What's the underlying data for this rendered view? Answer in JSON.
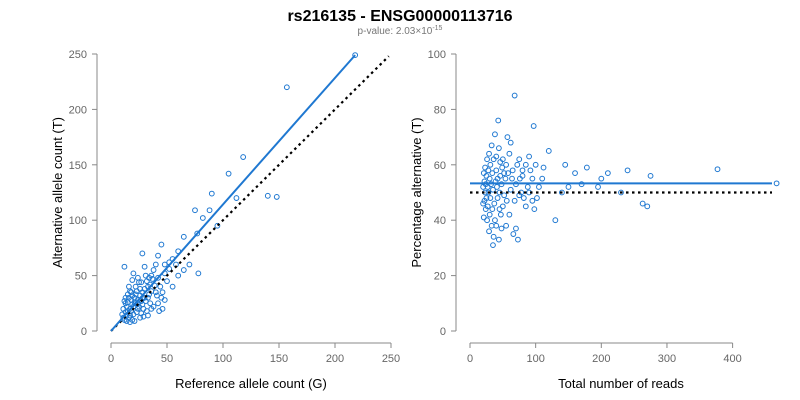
{
  "figure": {
    "title": "rs216135 - ENSG00000113716",
    "subtitle_prefix": "p-value: 2.03×10",
    "subtitle_exponent": "-15"
  },
  "colors": {
    "points": "#1f78d1",
    "fit_line": "#1f78d1",
    "reference_line": "#000000",
    "axis": "#888888",
    "tick_text": "#666666"
  },
  "chart_data": [
    {
      "type": "scatter",
      "xlabel": "Reference allele count (G)",
      "ylabel": "Alternative allele count (T)",
      "xlim": [
        0,
        250
      ],
      "ylim": [
        0,
        250
      ],
      "xticks": [
        0,
        50,
        100,
        150,
        200,
        250
      ],
      "yticks": [
        0,
        50,
        100,
        150,
        200,
        250
      ],
      "grid": false,
      "fit_line": [
        [
          0,
          0
        ],
        [
          218,
          249
        ]
      ],
      "reference_line": [
        [
          0,
          0
        ],
        [
          248,
          248
        ]
      ],
      "points": [
        [
          218,
          249
        ],
        [
          157,
          220
        ],
        [
          118,
          157
        ],
        [
          105,
          142
        ],
        [
          140,
          122
        ],
        [
          148,
          121
        ],
        [
          112,
          120
        ],
        [
          90,
          124
        ],
        [
          75,
          109
        ],
        [
          88,
          109
        ],
        [
          95,
          95
        ],
        [
          82,
          102
        ],
        [
          77,
          88
        ],
        [
          65,
          85
        ],
        [
          78,
          52
        ],
        [
          60,
          72
        ],
        [
          55,
          65
        ],
        [
          58,
          60
        ],
        [
          52,
          56
        ],
        [
          48,
          60
        ],
        [
          45,
          78
        ],
        [
          42,
          68
        ],
        [
          40,
          60
        ],
        [
          48,
          52
        ],
        [
          50,
          45
        ],
        [
          42,
          48
        ],
        [
          38,
          55
        ],
        [
          36,
          50
        ],
        [
          33,
          40
        ],
        [
          28,
          70
        ],
        [
          30,
          58
        ],
        [
          35,
          42
        ],
        [
          40,
          35
        ],
        [
          45,
          30
        ],
        [
          42,
          25
        ],
        [
          38,
          22
        ],
        [
          30,
          30
        ],
        [
          25,
          44
        ],
        [
          20,
          52
        ],
        [
          12,
          58
        ],
        [
          17,
          36
        ],
        [
          22,
          33
        ],
        [
          27,
          27
        ],
        [
          24,
          20
        ],
        [
          32,
          18
        ],
        [
          35,
          25
        ],
        [
          26,
          12
        ],
        [
          19,
          10
        ],
        [
          14,
          14
        ],
        [
          11,
          20
        ],
        [
          15,
          26
        ],
        [
          13,
          30
        ],
        [
          10,
          15
        ],
        [
          12,
          10
        ],
        [
          16,
          12
        ],
        [
          18,
          18
        ],
        [
          20,
          22
        ],
        [
          22,
          25
        ],
        [
          24,
          28
        ],
        [
          26,
          32
        ],
        [
          28,
          35
        ],
        [
          30,
          38
        ],
        [
          32,
          45
        ],
        [
          34,
          48
        ],
        [
          16,
          30
        ],
        [
          18,
          28
        ],
        [
          14,
          22
        ],
        [
          20,
          15
        ],
        [
          23,
          17
        ],
        [
          25,
          22
        ],
        [
          28,
          24
        ],
        [
          31,
          27
        ],
        [
          33,
          30
        ],
        [
          29,
          20
        ],
        [
          21,
          30
        ],
        [
          19,
          24
        ],
        [
          17,
          20
        ],
        [
          13,
          17
        ],
        [
          15,
          18
        ],
        [
          22,
          40
        ],
        [
          27,
          44
        ],
        [
          31,
          50
        ],
        [
          37,
          47
        ],
        [
          44,
          40
        ],
        [
          46,
          35
        ],
        [
          48,
          28
        ],
        [
          41,
          32
        ],
        [
          39,
          41
        ],
        [
          36,
          36
        ],
        [
          34,
          33
        ],
        [
          12,
          27
        ],
        [
          11,
          12
        ],
        [
          14,
          9
        ],
        [
          17,
          8
        ],
        [
          21,
          9
        ],
        [
          27,
          16
        ],
        [
          29,
          13
        ],
        [
          33,
          14
        ],
        [
          36,
          20
        ],
        [
          18,
          35
        ],
        [
          16,
          40
        ],
        [
          19,
          46
        ],
        [
          24,
          48
        ],
        [
          55,
          40
        ],
        [
          60,
          50
        ],
        [
          52,
          62
        ],
        [
          65,
          55
        ],
        [
          70,
          60
        ],
        [
          46,
          20
        ],
        [
          43,
          18
        ],
        [
          26,
          38
        ],
        [
          23,
          36
        ],
        [
          21,
          26
        ],
        [
          17,
          14
        ],
        [
          13,
          25
        ],
        [
          15,
          33
        ],
        [
          19,
          32
        ],
        [
          24,
          25
        ],
        [
          28,
          29
        ]
      ]
    },
    {
      "type": "scatter",
      "xlabel": "Total number of reads",
      "ylabel": "Percentage alternative (T)",
      "xlim": [
        0,
        460
      ],
      "ylim": [
        0,
        100
      ],
      "xticks": [
        0,
        100,
        200,
        300,
        400
      ],
      "yticks": [
        0,
        20,
        40,
        60,
        80,
        100
      ],
      "grid": false,
      "fit_line": [
        [
          0,
          53.3
        ],
        [
          460,
          53.3
        ]
      ],
      "reference_line": [
        [
          0,
          50
        ],
        [
          460,
          50
        ]
      ],
      "points": [
        [
          467,
          53.3
        ],
        [
          377,
          58.4
        ],
        [
          275,
          56
        ],
        [
          270,
          45
        ],
        [
          263,
          46
        ],
        [
          240,
          58
        ],
        [
          230,
          50
        ],
        [
          210,
          57
        ],
        [
          200,
          55
        ],
        [
          195,
          52
        ],
        [
          178,
          59
        ],
        [
          170,
          53
        ],
        [
          160,
          57
        ],
        [
          150,
          52
        ],
        [
          145,
          60
        ],
        [
          140,
          50
        ],
        [
          130,
          40
        ],
        [
          120,
          65
        ],
        [
          110,
          55
        ],
        [
          105,
          52
        ],
        [
          100,
          60
        ],
        [
          97,
          74
        ],
        [
          98,
          44
        ],
        [
          95,
          47
        ],
        [
          92,
          58
        ],
        [
          90,
          63
        ],
        [
          88,
          52
        ],
        [
          85,
          60
        ],
        [
          82,
          48
        ],
        [
          80,
          58
        ],
        [
          78,
          50
        ],
        [
          75,
          62
        ],
        [
          73,
          33
        ],
        [
          70,
          37
        ],
        [
          68,
          85
        ],
        [
          66,
          35
        ],
        [
          64,
          55
        ],
        [
          62,
          68
        ],
        [
          60,
          42
        ],
        [
          58,
          57
        ],
        [
          56,
          47
        ],
        [
          55,
          60
        ],
        [
          54,
          55
        ],
        [
          52,
          49
        ],
        [
          50,
          45
        ],
        [
          50,
          62
        ],
        [
          49,
          59
        ],
        [
          48,
          53
        ],
        [
          47,
          42
        ],
        [
          46,
          56
        ],
        [
          45,
          50
        ],
        [
          44,
          66
        ],
        [
          43,
          76
        ],
        [
          42,
          48
        ],
        [
          41,
          52
        ],
        [
          40,
          58
        ],
        [
          40,
          38
        ],
        [
          39,
          54
        ],
        [
          38,
          71
        ],
        [
          37,
          46
        ],
        [
          36,
          62
        ],
        [
          36,
          34
        ],
        [
          35,
          51
        ],
        [
          34,
          57
        ],
        [
          34,
          44
        ],
        [
          33,
          67
        ],
        [
          33,
          38
        ],
        [
          32,
          53
        ],
        [
          31,
          60
        ],
        [
          31,
          48
        ],
        [
          30,
          55
        ],
        [
          30,
          42
        ],
        [
          29,
          64
        ],
        [
          29,
          36
        ],
        [
          28,
          50
        ],
        [
          28,
          58
        ],
        [
          27,
          45
        ],
        [
          27,
          52
        ],
        [
          26,
          62
        ],
        [
          26,
          40
        ],
        [
          25,
          56
        ],
        [
          25,
          48
        ],
        [
          24,
          53
        ],
        [
          24,
          44
        ],
        [
          23,
          59
        ],
        [
          23,
          50
        ],
        [
          22,
          47
        ],
        [
          22,
          54
        ],
        [
          21,
          41
        ],
        [
          21,
          57
        ],
        [
          20,
          52
        ],
        [
          20,
          46
        ],
        [
          40,
          63
        ],
        [
          45,
          44
        ],
        [
          55,
          38
        ],
        [
          60,
          64
        ],
        [
          65,
          58
        ],
        [
          70,
          53
        ],
        [
          75,
          49
        ],
        [
          80,
          56
        ],
        [
          85,
          45
        ],
        [
          57,
          70
        ],
        [
          48,
          37
        ],
        [
          44,
          33
        ],
        [
          35,
          31
        ],
        [
          38,
          40
        ],
        [
          42,
          55
        ],
        [
          46,
          61
        ],
        [
          52,
          57
        ],
        [
          62,
          51
        ],
        [
          68,
          47
        ],
        [
          72,
          60
        ],
        [
          76,
          55
        ],
        [
          90,
          50
        ],
        [
          95,
          55
        ],
        [
          102,
          48
        ],
        [
          112,
          59
        ]
      ]
    }
  ]
}
